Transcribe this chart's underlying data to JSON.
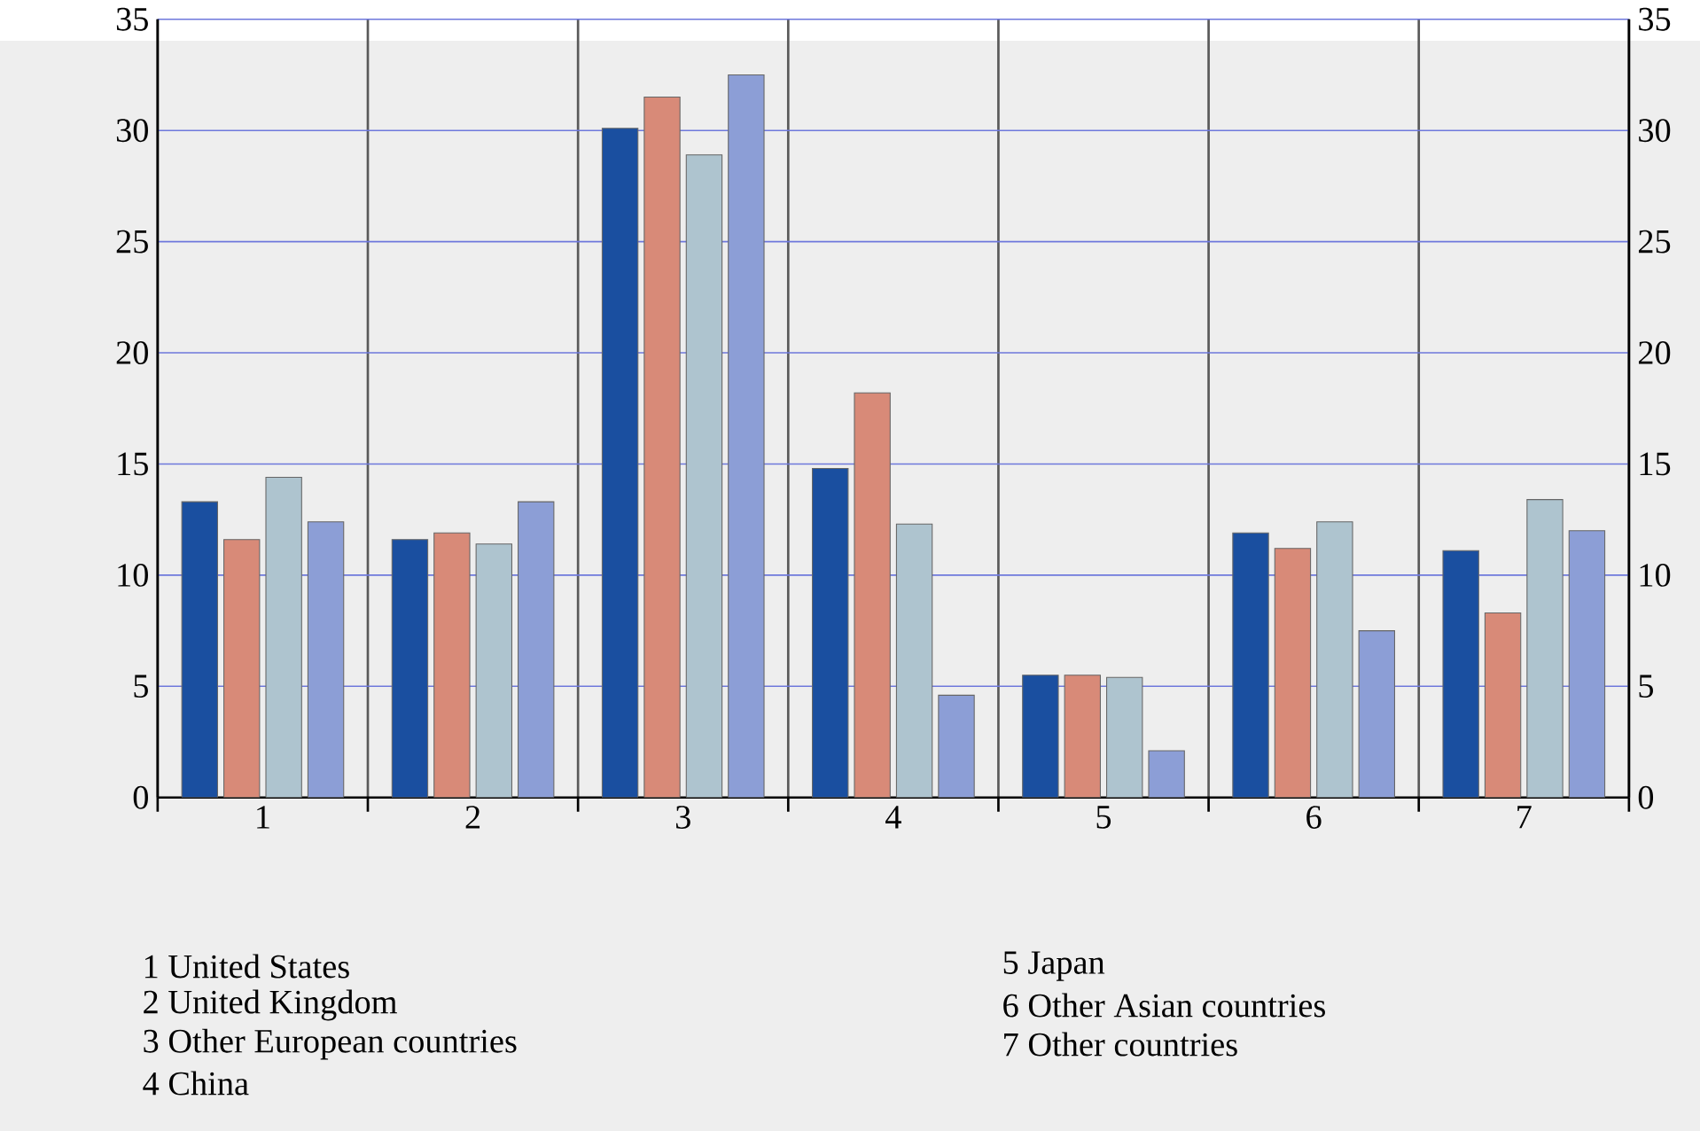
{
  "chart_data": {
    "type": "bar",
    "categories": [
      "1",
      "2",
      "3",
      "4",
      "5",
      "6",
      "7"
    ],
    "series": [
      {
        "color": "#1a4fa0",
        "values": [
          13.3,
          11.6,
          30.1,
          14.8,
          5.5,
          11.9,
          11.1
        ]
      },
      {
        "color": "#d88a78",
        "values": [
          11.6,
          11.9,
          31.5,
          18.2,
          5.5,
          11.2,
          8.3
        ]
      },
      {
        "color": "#aec4cf",
        "values": [
          14.4,
          11.4,
          28.9,
          12.3,
          5.4,
          12.4,
          13.4
        ]
      },
      {
        "color": "#8c9ed6",
        "values": [
          12.4,
          13.3,
          32.5,
          4.6,
          2.1,
          7.5,
          12.0
        ]
      }
    ],
    "ylim": [
      0,
      35
    ],
    "yticks": [
      0,
      5,
      10,
      15,
      20,
      25,
      30,
      35
    ],
    "y2lim": [
      0,
      35
    ],
    "y2ticks": [
      0,
      5,
      10,
      15,
      20,
      25,
      30,
      35
    ],
    "grid": true,
    "annotations": [
      "1 United States",
      "2 United Kingdom",
      "3 Other European countries",
      "4 China",
      "5 Japan",
      "6 Other Asian countries",
      "7 Other countries"
    ]
  }
}
